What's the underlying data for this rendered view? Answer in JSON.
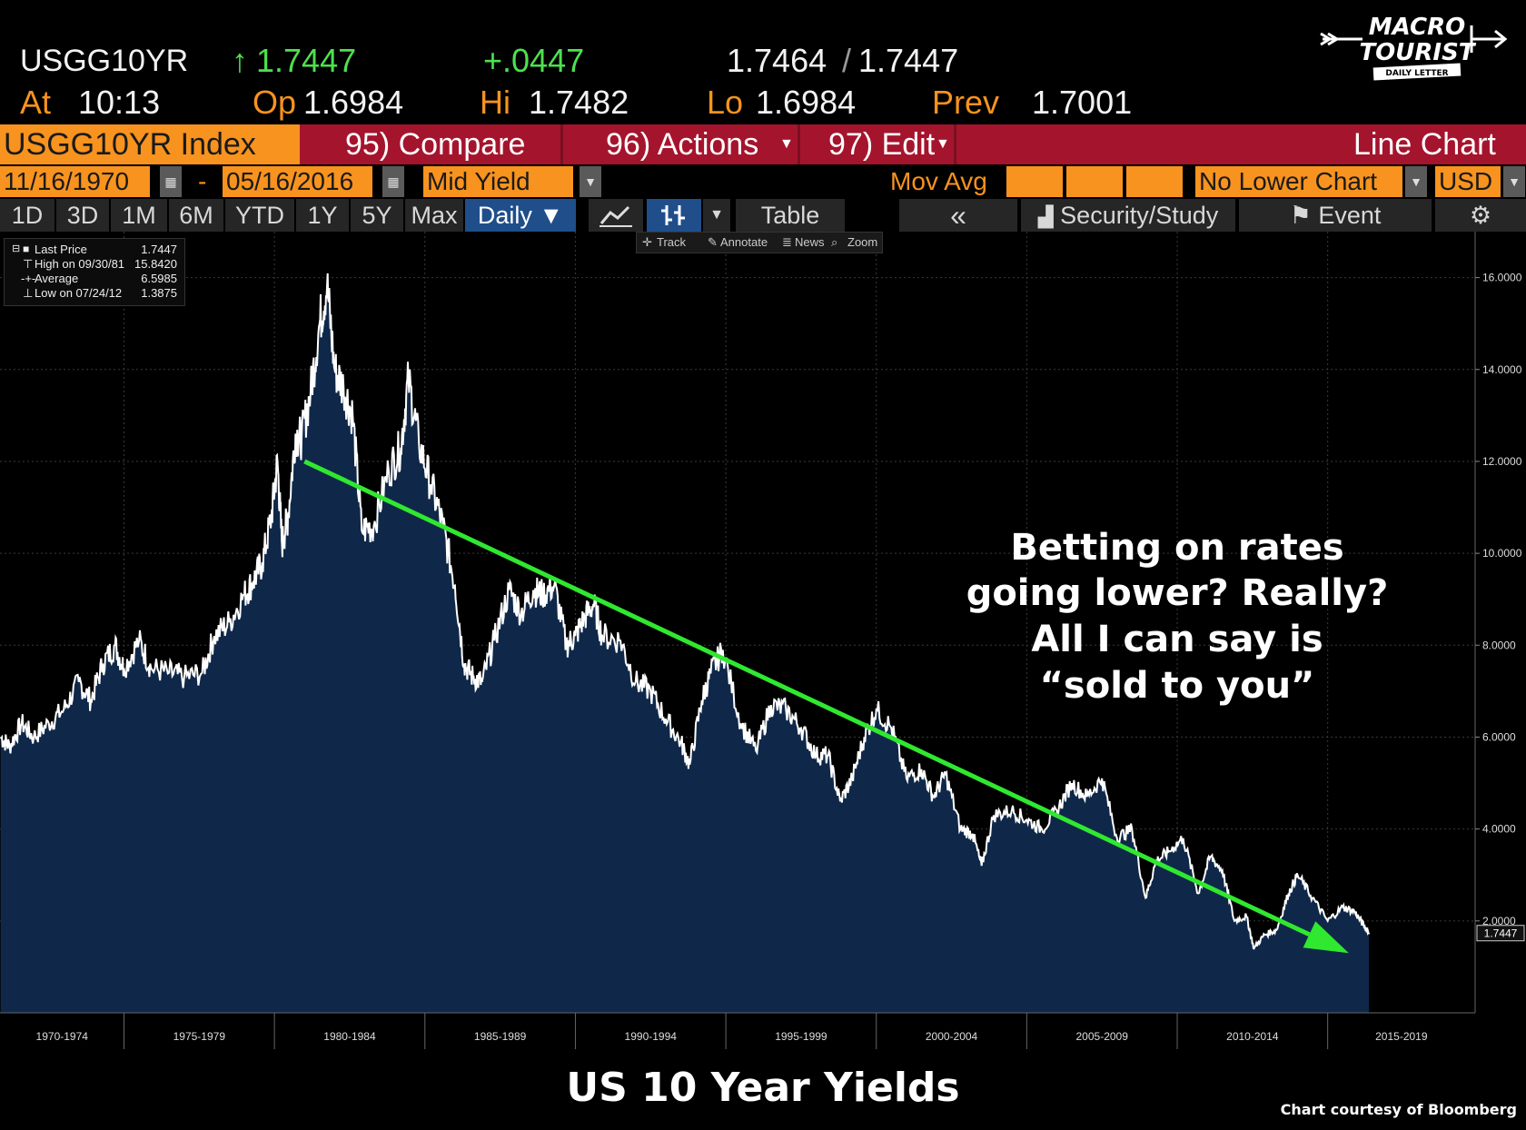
{
  "quote": {
    "ticker": "USGG10YR",
    "last": "1.7447",
    "change": "+.0447",
    "bid_ask": "1.7464",
    "bid_ask_2": "1.7447",
    "at_label": "At",
    "time": "10:13",
    "op_label": "Op",
    "open": "1.6984",
    "hi_label": "Hi",
    "high": "1.7482",
    "lo_label": "Lo",
    "low": "1.6984",
    "prev_label": "Prev",
    "prev": "1.7001"
  },
  "toolbar": {
    "security": "USGG10YR Index",
    "compare": "95) Compare",
    "actions": "96) Actions",
    "edit": "97) Edit",
    "chart_type": "Line Chart"
  },
  "settings": {
    "start_date": "11/16/1970",
    "dash": "-",
    "end_date": "05/16/2016",
    "field": "Mid Yield",
    "mov_avg": "Mov Avg",
    "lower_chart": "No Lower Chart",
    "currency": "USD"
  },
  "periods": [
    "1D",
    "3D",
    "1M",
    "6M",
    "YTD",
    "1Y",
    "5Y",
    "Max"
  ],
  "frequency": "Daily ▼",
  "buttons": {
    "table": "Table",
    "collapse": "«",
    "security_study": "Security/Study",
    "event": "Event"
  },
  "tools": [
    "Track",
    "Annotate",
    "News",
    "Zoom"
  ],
  "legend": [
    {
      "label": "Last Price",
      "value": "1.7447"
    },
    {
      "label": "High on 09/30/81",
      "value": "15.8420"
    },
    {
      "label": "Average",
      "value": "6.5985"
    },
    {
      "label": "Low on 07/24/12",
      "value": "1.3875"
    }
  ],
  "annotation": [
    "Betting on rates",
    "going lower?  Really?",
    "All I can say is",
    "“sold to you”"
  ],
  "title": "US 10 Year Yields",
  "credit": "Chart courtesy of Bloomberg",
  "logo": {
    "line1": "MACRO",
    "line2": "TOURIST",
    "line3": "DAILY LETTER"
  },
  "colors": {
    "quote_green": "#4ee04e",
    "bloomberg_orange": "#f7931e",
    "toolbar_red": "#a5142d",
    "area_fill": "#0f2849",
    "trend": "#2fe82f"
  },
  "chart_data": {
    "type": "area",
    "x": [
      1970.9,
      1971.2,
      1971.6,
      1972.0,
      1972.5,
      1973.0,
      1973.5,
      1973.9,
      1974.3,
      1974.7,
      1975.0,
      1975.5,
      1975.9,
      1976.5,
      1977.0,
      1977.6,
      1978.0,
      1978.5,
      1979.0,
      1979.3,
      1979.6,
      1979.9,
      1980.1,
      1980.25,
      1980.45,
      1980.7,
      1980.9,
      1981.2,
      1981.5,
      1981.75,
      1982.0,
      1982.3,
      1982.6,
      1982.9,
      1983.3,
      1983.8,
      1984.2,
      1984.45,
      1984.8,
      1985.2,
      1985.6,
      1986.0,
      1986.3,
      1986.6,
      1986.9,
      1987.3,
      1987.8,
      1988.2,
      1988.6,
      1988.9,
      1989.3,
      1989.7,
      1990.0,
      1990.3,
      1990.6,
      1990.9,
      1991.5,
      1992.0,
      1992.5,
      1993.0,
      1993.5,
      1993.8,
      1994.2,
      1994.5,
      1994.9,
      1995.5,
      1996.0,
      1996.5,
      1997.0,
      1997.5,
      1998.0,
      1998.4,
      1998.8,
      1999.2,
      1999.6,
      2000.0,
      2000.5,
      2001.0,
      2001.5,
      2001.9,
      2002.3,
      2002.8,
      2003.2,
      2003.5,
      2003.9,
      2004.5,
      2005.0,
      2005.5,
      2006.0,
      2006.5,
      2007.0,
      2007.5,
      2008.0,
      2008.5,
      2008.95,
      2009.3,
      2009.7,
      2010.2,
      2010.7,
      2011.1,
      2011.5,
      2011.9,
      2012.3,
      2012.55,
      2012.9,
      2013.3,
      2013.7,
      2014.0,
      2014.5,
      2015.0,
      2015.5,
      2015.9,
      2016.2,
      2016.37
    ],
    "y": [
      6.0,
      5.8,
      6.3,
      6.0,
      6.3,
      6.6,
      7.2,
      6.8,
      7.6,
      8.0,
      7.5,
      8.1,
      7.5,
      7.4,
      7.3,
      7.4,
      8.2,
      8.5,
      9.1,
      9.4,
      9.8,
      10.8,
      12.0,
      10.2,
      10.8,
      12.6,
      12.5,
      13.5,
      15.0,
      15.84,
      14.0,
      13.6,
      13.0,
      10.5,
      10.6,
      11.8,
      12.3,
      13.8,
      12.4,
      11.5,
      10.6,
      9.3,
      7.6,
      7.3,
      7.2,
      8.1,
      9.2,
      8.7,
      9.2,
      9.1,
      9.3,
      8.0,
      8.2,
      8.6,
      8.9,
      8.2,
      8.1,
      7.2,
      7.0,
      6.4,
      5.9,
      5.4,
      6.8,
      7.4,
      7.9,
      6.3,
      5.7,
      6.7,
      6.6,
      6.2,
      5.6,
      5.6,
      4.6,
      5.1,
      6.0,
      6.6,
      6.2,
      5.1,
      5.3,
      4.7,
      5.2,
      4.0,
      3.9,
      3.2,
      4.3,
      4.4,
      4.2,
      4.0,
      4.4,
      5.0,
      4.7,
      5.1,
      3.8,
      4.0,
      2.5,
      3.3,
      3.5,
      3.8,
      2.6,
      3.4,
      3.1,
      2.0,
      2.1,
      1.4,
      1.7,
      1.8,
      2.6,
      3.0,
      2.5,
      2.0,
      2.3,
      2.2,
      1.9,
      1.7447
    ],
    "ylim": [
      0,
      17
    ],
    "yticks": [
      "2.0000",
      "4.0000",
      "6.0000",
      "8.0000",
      "10.0000",
      "12.0000",
      "14.0000",
      "16.0000"
    ],
    "xlim": [
      1970.88,
      2019.9
    ],
    "xticks": [
      "1970-1974",
      "1975-1979",
      "1980-1984",
      "1985-1989",
      "1990-1994",
      "1995-1999",
      "2000-2004",
      "2005-2009",
      "2010-2014",
      "2015-2019"
    ],
    "last_label": "1.7447",
    "trendline": {
      "x": [
        1981.0,
        2015.7
      ],
      "y": [
        12.0,
        1.3
      ]
    },
    "grid": true
  }
}
